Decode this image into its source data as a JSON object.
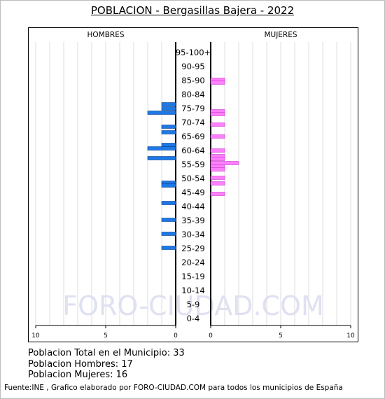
{
  "title": "POBLACION - Bergasillas Bajera - 2022",
  "chart_data": {
    "type": "bar",
    "subtype": "population-pyramid",
    "watermark": "FORO-CIUDAD.COM",
    "left_header": "HOMBRES",
    "right_header": "MUJERES",
    "age_groups": [
      "95-100+",
      "90-95",
      "85-90",
      "80-84",
      "75-79",
      "70-74",
      "65-69",
      "60-64",
      "55-59",
      "50-54",
      "45-49",
      "40-44",
      "35-39",
      "30-34",
      "25-29",
      "20-24",
      "15-19",
      "10-14",
      "5-9",
      "0-4"
    ],
    "xlim": [
      0,
      10
    ],
    "left_ticks": [
      "10",
      "5",
      "0"
    ],
    "right_ticks": [
      "0",
      "5",
      "10"
    ],
    "grid": true,
    "colors": {
      "men": "#1e78e6",
      "women": "#ff7fff"
    },
    "series": [
      {
        "name": "HOMBRES",
        "bars": [
          {
            "group": "75-79",
            "offset": -0.3,
            "value": 1
          },
          {
            "group": "75-79",
            "offset": 0.0,
            "value": 1
          },
          {
            "group": "75-79",
            "offset": 0.3,
            "value": 2
          },
          {
            "group": "70-74",
            "offset": 0.3,
            "value": 1
          },
          {
            "group": "65-69",
            "offset": -0.3,
            "value": 1
          },
          {
            "group": "60-64",
            "offset": -0.4,
            "value": 1
          },
          {
            "group": "60-64",
            "offset": -0.15,
            "value": 2
          },
          {
            "group": "55-59",
            "offset": -0.45,
            "value": 2
          },
          {
            "group": "50-54",
            "offset": 0.3,
            "value": 1
          },
          {
            "group": "50-54",
            "offset": 0.5,
            "value": 1
          },
          {
            "group": "40-44",
            "offset": -0.25,
            "value": 1
          },
          {
            "group": "35-39",
            "offset": -0.05,
            "value": 1
          },
          {
            "group": "30-34",
            "offset": -0.05,
            "value": 1
          },
          {
            "group": "25-29",
            "offset": -0.05,
            "value": 1
          }
        ]
      },
      {
        "name": "MUJERES",
        "bars": [
          {
            "group": "85-90",
            "offset": -0.05,
            "value": 1
          },
          {
            "group": "85-90",
            "offset": 0.15,
            "value": 1
          },
          {
            "group": "75-79",
            "offset": 0.2,
            "value": 1
          },
          {
            "group": "75-79",
            "offset": 0.4,
            "value": 1
          },
          {
            "group": "70-74",
            "offset": 0.15,
            "value": 1
          },
          {
            "group": "65-69",
            "offset": 0.0,
            "value": 1
          },
          {
            "group": "60-64",
            "offset": 0.0,
            "value": 1
          },
          {
            "group": "60-64",
            "offset": 0.4,
            "value": 1
          },
          {
            "group": "60-64",
            "offset": 0.6,
            "value": 1
          },
          {
            "group": "55-59",
            "offset": -0.1,
            "value": 2
          },
          {
            "group": "55-59",
            "offset": 0.15,
            "value": 1
          },
          {
            "group": "55-59",
            "offset": 0.35,
            "value": 1
          },
          {
            "group": "50-54",
            "offset": -0.05,
            "value": 1
          },
          {
            "group": "50-54",
            "offset": 0.35,
            "value": 1
          },
          {
            "group": "45-49",
            "offset": 0.1,
            "value": 1
          }
        ]
      }
    ]
  },
  "stats": {
    "total": "Poblacion Total en el Municipio: 33",
    "men": "Poblacion Hombres: 17",
    "women": "Poblacion Mujeres: 16"
  },
  "source": "Fuente:INE , Grafico elaborado por FORO-CIUDAD.COM para todos los municipios de España"
}
